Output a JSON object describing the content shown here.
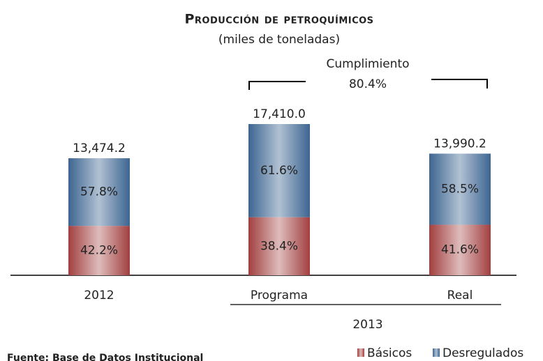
{
  "chart_data": {
    "type": "bar",
    "title": "Producción de petroquímicos",
    "subtitle": "(miles de toneladas)",
    "categories": [
      "2012",
      "Programa",
      "Real"
    ],
    "group_label": "2013",
    "series": [
      {
        "name": "Básicos",
        "color": "#a23f3f",
        "values": [
          42.2,
          38.4,
          41.6
        ],
        "value_labels": [
          "42.2%",
          "38.4%",
          "41.6%"
        ]
      },
      {
        "name": "Desregulados",
        "color": "#3d6591",
        "values": [
          57.8,
          61.6,
          58.5
        ],
        "value_labels": [
          "57.8%",
          "61.6%",
          "58.5%"
        ]
      }
    ],
    "totals": {
      "values": [
        13474.2,
        17410.0,
        13990.2
      ],
      "value_labels": [
        "13,474.2",
        "17,410.0",
        "13,990.2"
      ]
    },
    "annotation": {
      "label": "Cumplimiento",
      "value": 80.4,
      "value_label": "80.4%"
    },
    "source": "Fuente: Base de Datos Institucional"
  }
}
